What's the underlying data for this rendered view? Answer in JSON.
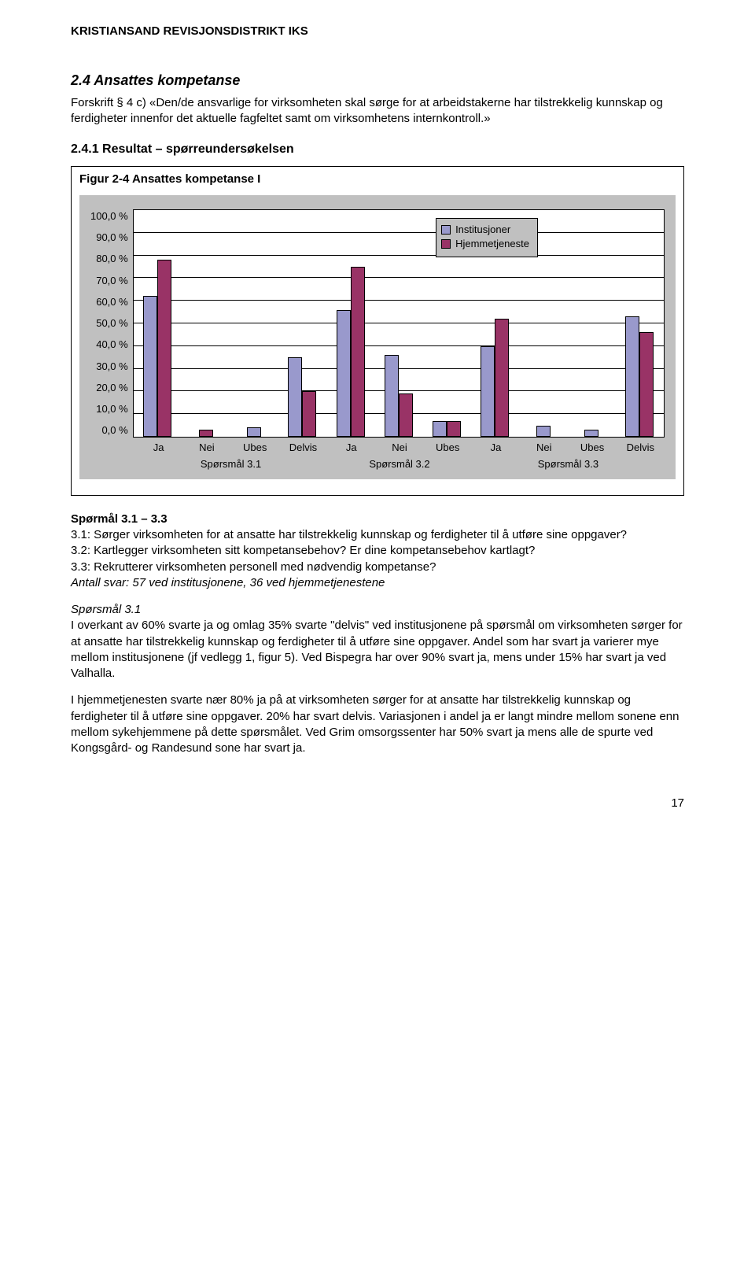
{
  "header": {
    "org": "KRISTIANSAND REVISJONSDISTRIKT IKS"
  },
  "section": {
    "num_title": "2.4  Ansattes kompetanse",
    "forskrift": "Forskrift § 4 c) «Den/de ansvarlige for virksomheten skal sørge for at arbeidstakerne har tilstrekkelig kunnskap og ferdigheter innenfor det aktuelle fagfeltet samt om virksomhetens internkontroll.»",
    "sub_title": "2.4.1  Resultat – spørreundersøkelsen"
  },
  "figure": {
    "title": "Figur 2-4 Ansattes kompetanse I",
    "chart": {
      "type": "bar",
      "background_outer": "#c0c0c0",
      "background_plot": "#ffffff",
      "grid_color": "#000000",
      "ytick_labels": [
        "100,0 %",
        "90,0 %",
        "80,0 %",
        "70,0 %",
        "60,0 %",
        "50,0 %",
        "40,0 %",
        "30,0 %",
        "20,0 %",
        "10,0 %",
        "0,0 %"
      ],
      "ylim": [
        0,
        100
      ],
      "series": [
        {
          "label": "Institusjoner",
          "color": "#9999cc"
        },
        {
          "label": "Hjemmetjeneste",
          "color": "#993366"
        }
      ],
      "categories": [
        {
          "label": "Ja",
          "group": "Spørsmål 3.1",
          "values": [
            62,
            78
          ]
        },
        {
          "label": "Nei",
          "group": "Spørsmål 3.1",
          "values": [
            0,
            3
          ]
        },
        {
          "label": "Ubes",
          "group": "Spørsmål 3.1",
          "values": [
            4,
            0
          ]
        },
        {
          "label": "Delvis",
          "group": "Spørsmål 3.1",
          "values": [
            35,
            20
          ]
        },
        {
          "label": "Ja",
          "group": "Spørsmål 3.2",
          "values": [
            56,
            75
          ]
        },
        {
          "label": "Nei",
          "group": "Spørsmål 3.2",
          "values": [
            36,
            19
          ]
        },
        {
          "label": "Ubes",
          "group": "Spørsmål 3.2",
          "values": [
            7,
            7
          ]
        },
        {
          "label": "Ja",
          "group": "Spørsmål 3.3",
          "values": [
            40,
            52
          ]
        },
        {
          "label": "Nei",
          "group": "Spørsmål 3.3",
          "values": [
            5,
            0
          ]
        },
        {
          "label": "Ubes",
          "group": "Spørsmål 3.3",
          "values": [
            3,
            0
          ]
        },
        {
          "label": "Delvis",
          "group": "Spørsmål 3.3",
          "values": [
            53,
            46
          ]
        }
      ],
      "groups": [
        "Spørsmål 3.1",
        "Spørsmål 3.2",
        "Spørsmål 3.3"
      ],
      "group_spans": [
        4,
        3,
        4
      ]
    }
  },
  "questions": {
    "heading": "Spørmål 3.1 – 3.3",
    "q31": "3.1: Sørger virksomheten for at ansatte har tilstrekkelig kunnskap og ferdigheter til å utføre sine oppgaver?",
    "q32": "3.2: Kartlegger virksomheten sitt kompetansebehov? Er dine kompetansebehov kartlagt?",
    "q33": "3.3: Rekrutterer virksomheten personell med nødvendig kompetanse?",
    "antall": "Antall svar: 57 ved institusjonene, 36 ved hjemmetjenestene"
  },
  "body": {
    "sp31_head": "Spørsmål 3.1",
    "p1": "I overkant av 60% svarte ja og omlag 35% svarte \"delvis\" ved institusjonene på spørsmål om virksomheten sørger for at ansatte har tilstrekkelig kunnskap og ferdigheter til å utføre sine oppgaver. Andel som har svart ja varierer mye mellom institusjonene (jf vedlegg 1, figur 5). Ved Bispegra har over 90% svart ja, mens under 15% har svart ja ved Valhalla.",
    "p2": "I hjemmetjenesten svarte nær 80% ja på at virksomheten sørger for at ansatte har tilstrekkelig kunnskap og ferdigheter til å utføre sine oppgaver. 20% har svart delvis. Variasjonen i andel ja er langt mindre mellom sonene enn mellom sykehjemmene på dette spørsmålet. Ved Grim omsorgssenter har 50% svart ja mens alle de spurte ved Kongsgård- og Randesund sone har svart ja."
  },
  "page": "17"
}
